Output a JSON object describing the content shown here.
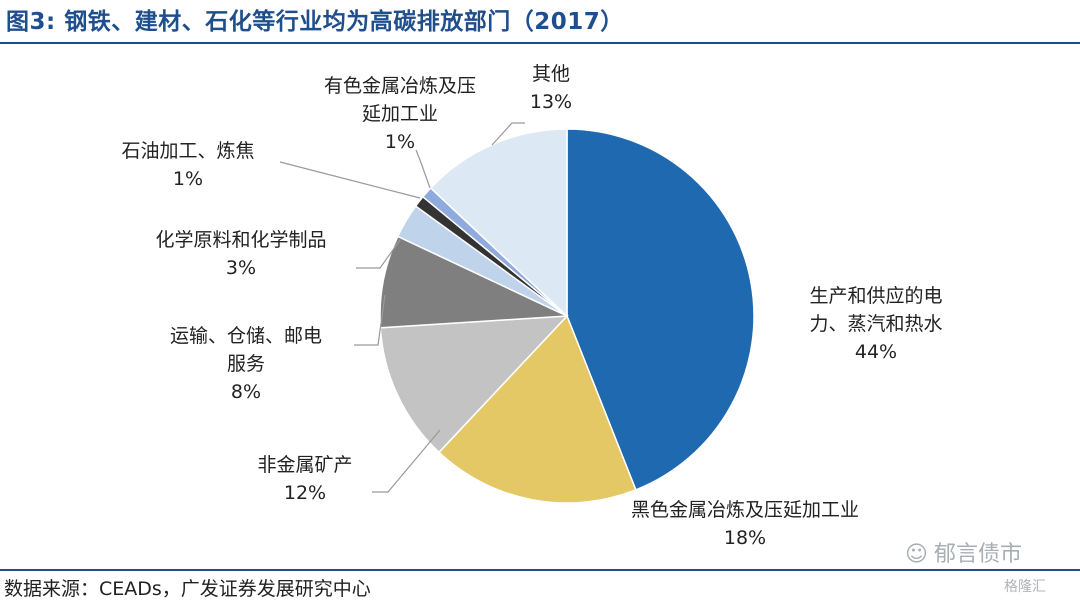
{
  "header": {
    "title": "图3: 钢铁、建材、石化等行业均为高碳排放部门（2017）"
  },
  "footer": {
    "source": "数据来源：CEADs，广发证券发展研究中心"
  },
  "watermark": {
    "text": "郁言债市",
    "small": "格隆汇"
  },
  "chart_data": {
    "type": "pie",
    "title": "图3: 钢铁、建材、石化等行业均为高碳排放部门（2017）",
    "unit": "%",
    "slices": [
      {
        "name": "生产和供应的电力、蒸汽和热水",
        "lines": [
          "生产和供应的电",
          "力、蒸汽和热水"
        ],
        "value": 44,
        "label": "44%",
        "color": "#1e69b0"
      },
      {
        "name": "黑色金属冶炼及压延加工业",
        "lines": [
          "黑色金属冶炼及压延加工业"
        ],
        "value": 18,
        "label": "18%",
        "color": "#e4c865"
      },
      {
        "name": "非金属矿产",
        "lines": [
          "非金属矿产"
        ],
        "value": 12,
        "label": "12%",
        "color": "#c3c3c3"
      },
      {
        "name": "运输、仓储、邮电服务",
        "lines": [
          "运输、仓储、邮电",
          "服务"
        ],
        "value": 8,
        "label": "8%",
        "color": "#7f7f7f"
      },
      {
        "name": "化学原料和化学制品",
        "lines": [
          "化学原料和化学制品"
        ],
        "value": 3,
        "label": "3%",
        "color": "#bfd3ea"
      },
      {
        "name": "石油加工、炼焦",
        "lines": [
          "石油加工、炼焦"
        ],
        "value": 1,
        "label": "1%",
        "color": "#333333"
      },
      {
        "name": "有色金属冶炼及压延加工业",
        "lines": [
          "有色金属冶炼及压",
          "延加工业"
        ],
        "value": 1,
        "label": "1%",
        "color": "#8faadc"
      },
      {
        "name": "其他",
        "lines": [
          "其他"
        ],
        "value": 13,
        "label": "13%",
        "color": "#dde8f5"
      }
    ]
  }
}
